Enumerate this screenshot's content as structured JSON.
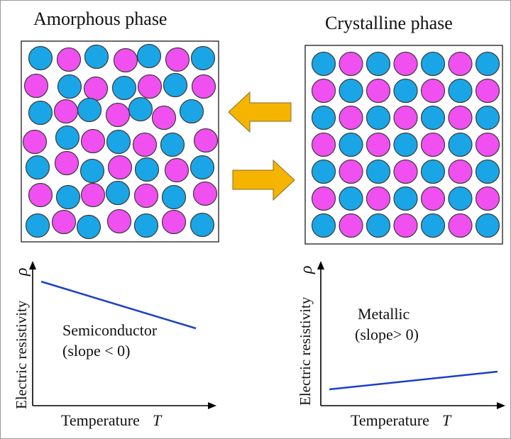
{
  "panels": {
    "amorphous_title": "Amorphous phase",
    "crystalline_title": "Crystalline phase"
  },
  "colors": {
    "atom_blue": "#1aa6e6",
    "atom_magenta": "#f050f0",
    "arrow": "#f5b400",
    "arrow_edge": "#8a6a20",
    "line": "#1c3fc8",
    "outline": "#3a3a3a"
  },
  "grid": {
    "rows": 7,
    "cols": 7
  },
  "plots": {
    "left": {
      "ylabel": "Electric resistivity",
      "ysymbol": "ρ",
      "xlabel": "Temperature",
      "xsymbol": "T",
      "annotation_line1": "Semiconductor",
      "annotation_line2": "(slope < 0)"
    },
    "right": {
      "ylabel": "Electric resistivity",
      "ysymbol": "ρ",
      "xlabel": "Temperature",
      "xsymbol": "T",
      "annotation_line1": "Metallic",
      "annotation_line2": "(slope> 0)"
    }
  }
}
